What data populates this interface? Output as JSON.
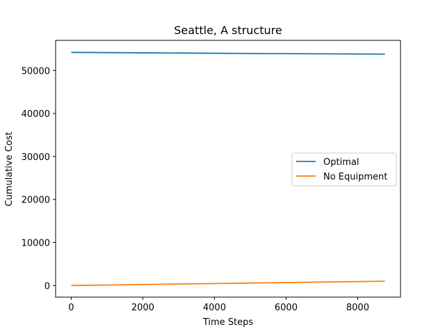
{
  "chart_data": {
    "type": "line",
    "title": "Seattle, A structure",
    "xlabel": "Time Steps",
    "ylabel": "Cumulative Cost",
    "xlim": [
      -435,
      9195
    ],
    "ylim": [
      -2700,
      57000
    ],
    "xticks": [
      0,
      2000,
      4000,
      6000,
      8000
    ],
    "yticks": [
      0,
      10000,
      20000,
      30000,
      40000,
      50000
    ],
    "xtick_labels": [
      "0",
      "2000",
      "4000",
      "6000",
      "8000"
    ],
    "ytick_labels": [
      "0",
      "10000",
      "20000",
      "30000",
      "40000",
      "50000"
    ],
    "grid": false,
    "legend_position": "center-right",
    "series": [
      {
        "name": "Optimal",
        "color": "#1f77b4",
        "x": [
          0,
          2000,
          4000,
          6000,
          8760
        ],
        "y": [
          54200,
          54100,
          54000,
          53900,
          53800
        ]
      },
      {
        "name": "No Equipment",
        "color": "#ff7f0e",
        "x": [
          0,
          2000,
          4000,
          6000,
          8760
        ],
        "y": [
          0,
          230,
          460,
          690,
          1000
        ]
      }
    ]
  }
}
